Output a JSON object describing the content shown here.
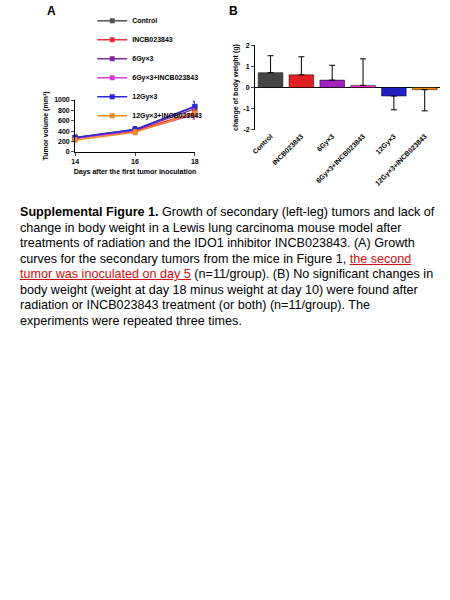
{
  "chart_data": [
    {
      "type": "line",
      "title": "A",
      "xlabel": "Days after the first tumor inoculation",
      "ylabel": "Tumor volume (mm³)",
      "x": [
        14,
        16,
        18
      ],
      "xlim": [
        14,
        18
      ],
      "xticks": [
        14,
        16,
        18
      ],
      "ylim": [
        0,
        1000
      ],
      "yticks": [
        0,
        200,
        400,
        600,
        800,
        1000
      ],
      "legend": "upper left",
      "series": [
        {
          "name": "Control",
          "color": "#555555",
          "marker": "square",
          "values": [
            280,
            430,
            870
          ],
          "errors": [
            50,
            60,
            90
          ]
        },
        {
          "name": "INCB023843",
          "color": "#e8323c",
          "marker": "square",
          "values": [
            270,
            410,
            760
          ],
          "errors": [
            45,
            55,
            110
          ]
        },
        {
          "name": "6Gy×3",
          "color": "#7b2a9c",
          "marker": "square",
          "values": [
            275,
            420,
            830
          ],
          "errors": [
            45,
            55,
            80
          ]
        },
        {
          "name": "6Gy×3+INCB023843",
          "color": "#d63ad6",
          "marker": "square",
          "values": [
            260,
            400,
            720
          ],
          "errors": [
            40,
            50,
            90
          ]
        },
        {
          "name": "12Gy×3",
          "color": "#2b2bd6",
          "marker": "square",
          "values": [
            275,
            430,
            880
          ],
          "errors": [
            45,
            60,
            100
          ]
        },
        {
          "name": "12Gy×3+INCB023843",
          "color": "#f08a1c",
          "marker": "square",
          "values": [
            230,
            380,
            750
          ],
          "errors": [
            40,
            50,
            80
          ]
        }
      ]
    },
    {
      "type": "bar",
      "title": "B",
      "ylabel": "change of body weight (g)",
      "categories": [
        "Control",
        "INCB023843",
        "6Gy×3",
        "6Gy×3+INCB023843",
        "12Gy×3",
        "12Gy×3+INCB023843"
      ],
      "values": [
        0.7,
        0.6,
        0.35,
        0.1,
        -0.4,
        -0.1
      ],
      "errors": [
        0.8,
        0.85,
        0.7,
        1.25,
        0.65,
        1.0
      ],
      "colors": [
        "#444444",
        "#e02020",
        "#a020c0",
        "#ff33cc",
        "#2020c0",
        "#ff8800"
      ],
      "ylim": [
        -2,
        2
      ],
      "yticks": [
        -2,
        -1,
        0,
        1,
        2
      ]
    }
  ],
  "caption": {
    "label": "Supplemental Figure 1.",
    "parts": [
      {
        "text": " Growth of secondary (left-leg) tumors and lack of change in body weight in a Lewis lung carcinoma mouse model after treatments of radiation and the IDO1 inhibitor INCB023843. (A) Growth curves for the secondary tumors from the mice in Figure 1, "
      },
      {
        "text": "the second tumor was inoculated on day 5",
        "marked": true
      },
      {
        "text": " (n=11/group). (B) No significant changes in body weight (weight at day 18 minus weight at day 10) were found after radiation or INCB023843 treatment (or both) (n=11/group). The experiments were repeated three times."
      }
    ]
  }
}
